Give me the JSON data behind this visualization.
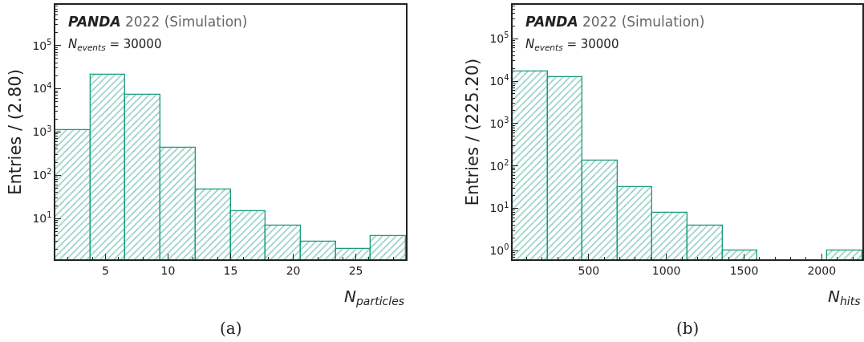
{
  "chart_data": [
    {
      "type": "histogram",
      "ylabel": "Entries / (2.80)",
      "xlabel": "N$_{particles}$",
      "annotations": [
        "PANDA 2022 (Simulation)",
        "N$_{events}$ = 30000",
        "(a)"
      ],
      "bins": [
        1.0,
        3.8,
        6.6,
        9.4,
        12.2,
        15.0,
        17.8,
        20.6,
        23.4,
        26.2,
        29.0
      ],
      "values": [
        1100,
        21000,
        7200,
        430,
        47,
        15,
        7,
        3,
        2,
        4
      ],
      "color": "#1a9a7c",
      "log": "y",
      "xlim": [
        1,
        29
      ],
      "ylim": [
        1.15,
        870000
      ],
      "xticks": [
        5,
        10,
        15,
        20,
        25
      ],
      "yticks": [
        {
          "value": 10,
          "label": "10$^{1}$"
        },
        {
          "value": 100,
          "label": "10$^{2}$"
        },
        {
          "value": 1000,
          "label": "10$^{3}$"
        },
        {
          "value": 10000,
          "label": "10$^{4}$"
        },
        {
          "value": 100000,
          "label": "10$^{5}$"
        }
      ]
    },
    {
      "type": "histogram",
      "ylabel": "Entries / (225.20)",
      "xlabel": "N$_{hits}$",
      "annotations": [
        "PANDA 2022 (Simulation)",
        "N$_{events}$ = 30000",
        "(b)"
      ],
      "bins": [
        10,
        235.2,
        460.4,
        685.6,
        910.8,
        1136,
        1361.2,
        1586.4,
        1811.6,
        2036.8,
        2262
      ],
      "values": [
        17000,
        12400,
        137,
        32,
        8,
        4,
        1,
        null,
        null,
        1
      ],
      "color": "#1a9a7c",
      "log": "y",
      "xlim": [
        10,
        2262
      ],
      "ylim": [
        0.63,
        630000
      ],
      "xticks": [
        500,
        1000,
        1500,
        2000
      ],
      "yticks": [
        {
          "value": 1,
          "label": "10$^{0}$"
        },
        {
          "value": 10,
          "label": "10$^{1}$"
        },
        {
          "value": 100,
          "label": "10$^{2}$"
        },
        {
          "value": 1000,
          "label": "10$^{3}$"
        },
        {
          "value": 10000,
          "label": "10$^{4}$"
        },
        {
          "value": 100000,
          "label": "10$^{5}$"
        }
      ]
    }
  ]
}
